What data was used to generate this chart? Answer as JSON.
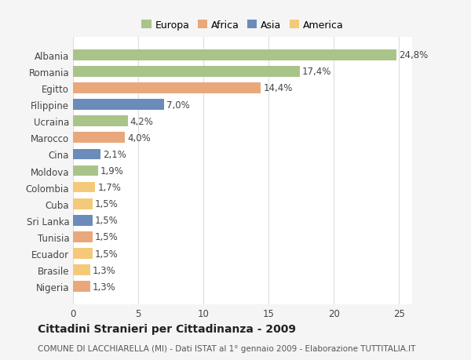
{
  "categories": [
    "Nigeria",
    "Brasile",
    "Ecuador",
    "Tunisia",
    "Sri Lanka",
    "Cuba",
    "Colombia",
    "Moldova",
    "Cina",
    "Marocco",
    "Ucraina",
    "Filippine",
    "Egitto",
    "Romania",
    "Albania"
  ],
  "values": [
    1.3,
    1.3,
    1.5,
    1.5,
    1.5,
    1.5,
    1.7,
    1.9,
    2.1,
    4.0,
    4.2,
    7.0,
    14.4,
    17.4,
    24.8
  ],
  "labels": [
    "1,3%",
    "1,3%",
    "1,5%",
    "1,5%",
    "1,5%",
    "1,5%",
    "1,7%",
    "1,9%",
    "2,1%",
    "4,0%",
    "4,2%",
    "7,0%",
    "14,4%",
    "17,4%",
    "24,8%"
  ],
  "colors": [
    "#e8a87c",
    "#f5c97a",
    "#f5c97a",
    "#e8a87c",
    "#6b8cba",
    "#f5c97a",
    "#f5c97a",
    "#a8c488",
    "#6b8cba",
    "#e8a87c",
    "#a8c488",
    "#6b8cba",
    "#e8a87c",
    "#a8c488",
    "#a8c488"
  ],
  "legend_labels": [
    "Europa",
    "Africa",
    "Asia",
    "America"
  ],
  "legend_colors": [
    "#a8c488",
    "#e8a87c",
    "#6b8cba",
    "#f5c97a"
  ],
  "title": "Cittadini Stranieri per Cittadinanza - 2009",
  "subtitle": "COMUNE DI LACCHIARELLA (MI) - Dati ISTAT al 1° gennaio 2009 - Elaborazione TUTTITALIA.IT",
  "xlim": [
    0,
    26
  ],
  "xticks": [
    0,
    5,
    10,
    15,
    20,
    25
  ],
  "bg_color": "#f5f5f5",
  "bar_bg_color": "#ffffff",
  "grid_color": "#dddddd",
  "title_fontsize": 10,
  "subtitle_fontsize": 7.5,
  "tick_fontsize": 8.5,
  "legend_fontsize": 9
}
